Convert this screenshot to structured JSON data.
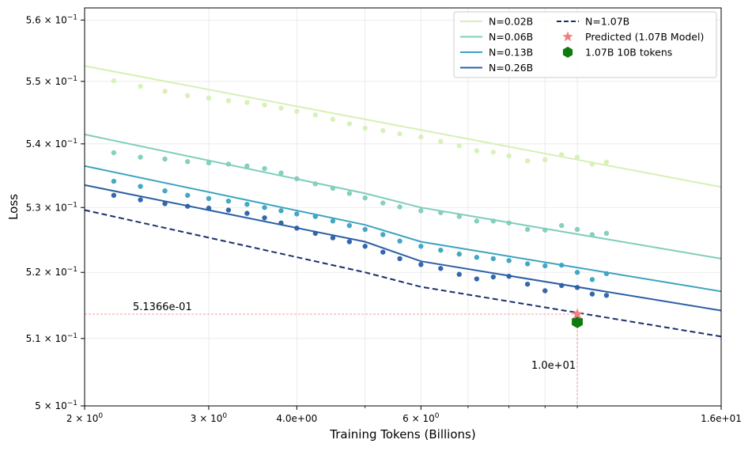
{
  "chart_data": {
    "type": "scatter",
    "xlabel": "Training Tokens (Billions)",
    "ylabel": "Loss",
    "x_scale": "log",
    "y_scale": "log",
    "xlim": [
      2.0,
      16.0
    ],
    "ylim": [
      0.5,
      0.562
    ],
    "grid": true,
    "legend_position": "top-right",
    "x_ticks": [
      {
        "value": 2.0,
        "label": "2 × 10",
        "exp": "0"
      },
      {
        "value": 3.0,
        "label": "3 × 10",
        "exp": "0"
      },
      {
        "value": 4.0,
        "label": "4.0e+00",
        "exp": ""
      },
      {
        "value": 6.0,
        "label": "6 × 10",
        "exp": "0"
      },
      {
        "value": 16.0,
        "label": "1.6e+01",
        "exp": ""
      }
    ],
    "x_minor_grid": [
      5.0,
      7.0,
      8.0,
      9.0,
      10.0
    ],
    "y_ticks": [
      {
        "value": 0.5,
        "label": "5 × 10",
        "exp": "−1"
      },
      {
        "value": 0.51,
        "label": "5.1 × 10",
        "exp": "−1"
      },
      {
        "value": 0.52,
        "label": "5.2 × 10",
        "exp": "−1"
      },
      {
        "value": 0.53,
        "label": "5.3 × 10",
        "exp": "−1"
      },
      {
        "value": 0.54,
        "label": "5.4 × 10",
        "exp": "−1"
      },
      {
        "value": 0.55,
        "label": "5.5 × 10",
        "exp": "−1"
      },
      {
        "value": 0.56,
        "label": "5.6 × 10",
        "exp": "−1"
      }
    ],
    "x_points": [
      2.2,
      2.4,
      2.6,
      2.8,
      3.0,
      3.2,
      3.4,
      3.6,
      3.8,
      4.0,
      4.25,
      4.5,
      4.75,
      5.0,
      5.3,
      5.6,
      6.0,
      6.4,
      6.8,
      7.2,
      7.6,
      8.0,
      8.5,
      9.0,
      9.5,
      10.0,
      10.5,
      11.0
    ],
    "series": [
      {
        "name": "N=0.02B",
        "color": "#d6f0b5",
        "fit": [
          [
            2.0,
            0.5525
          ],
          [
            16.0,
            0.5332
          ]
        ],
        "points": [
          0.5501,
          0.5492,
          0.5484,
          0.5477,
          0.5473,
          0.5469,
          0.5466,
          0.5462,
          0.5457,
          0.5452,
          0.5446,
          0.5439,
          0.5432,
          0.5425,
          0.5421,
          0.5416,
          0.5411,
          0.5404,
          0.5397,
          0.5389,
          0.5387,
          0.5381,
          0.5373,
          0.5375,
          0.5383,
          0.5379,
          0.5368,
          0.5371
        ]
      },
      {
        "name": "N=0.06B",
        "color": "#7fcdbb",
        "fit": [
          [
            2.0,
            0.5415
          ],
          [
            5.0,
            0.5322
          ],
          [
            6.0,
            0.53
          ],
          [
            16.0,
            0.5221
          ]
        ],
        "points": [
          0.5386,
          0.5379,
          0.5376,
          0.5372,
          0.537,
          0.5368,
          0.5365,
          0.5361,
          0.5354,
          0.5345,
          0.5337,
          0.533,
          0.5322,
          0.5315,
          0.5307,
          0.5301,
          0.5295,
          0.5292,
          0.5286,
          0.5279,
          0.5279,
          0.5276,
          0.5266,
          0.5265,
          0.5272,
          0.5266,
          0.5258,
          0.526
        ]
      },
      {
        "name": "N=0.13B",
        "color": "#3ba3c0",
        "fit": [
          [
            2.0,
            0.5365
          ],
          [
            5.0,
            0.5273
          ],
          [
            6.0,
            0.5247
          ],
          [
            16.0,
            0.5171
          ]
        ],
        "points": [
          0.5341,
          0.5333,
          0.5326,
          0.5319,
          0.5314,
          0.531,
          0.5305,
          0.53,
          0.5295,
          0.529,
          0.5286,
          0.5279,
          0.5272,
          0.5266,
          0.5258,
          0.5248,
          0.524,
          0.5234,
          0.5228,
          0.5223,
          0.5221,
          0.5218,
          0.5213,
          0.521,
          0.5211,
          0.52,
          0.5189,
          0.5198
        ]
      },
      {
        "name": "N=0.26B",
        "color": "#2b5fa6",
        "fit": [
          [
            2.0,
            0.5335
          ],
          [
            5.0,
            0.5247
          ],
          [
            6.0,
            0.5217
          ],
          [
            16.0,
            0.5142
          ]
        ],
        "points": [
          0.5319,
          0.5312,
          0.5306,
          0.5302,
          0.5299,
          0.5296,
          0.5291,
          0.5284,
          0.5276,
          0.5268,
          0.526,
          0.5253,
          0.5247,
          0.524,
          0.5231,
          0.5221,
          0.5212,
          0.5206,
          0.5197,
          0.519,
          0.5193,
          0.5194,
          0.5182,
          0.5172,
          0.518,
          0.5177,
          0.5167,
          0.5165
        ]
      },
      {
        "name": "N=1.07B",
        "color": "#1a2f6e",
        "dash": true,
        "fit": [
          [
            2.0,
            0.5296
          ],
          [
            5.0,
            0.52
          ],
          [
            6.0,
            0.5178
          ],
          [
            16.0,
            0.5103
          ]
        ],
        "points": []
      }
    ],
    "predicted": {
      "name": "Predicted (1.07B Model)",
      "x": 10.0,
      "y": 0.51366,
      "color": "#f08080"
    },
    "actual": {
      "name": "1.07B 10B tokens",
      "x": 10.0,
      "y": 0.5125,
      "color": "#0f7a0f"
    },
    "annotations": {
      "y_value_label": "5.1366e-01",
      "x_value_label": "1.0e+01",
      "color": "#f08080"
    },
    "legend_order": [
      "N=0.02B",
      "N=0.06B",
      "N=0.13B",
      "N=0.26B",
      "N=1.07B",
      "Predicted (1.07B Model)",
      "1.07B 10B tokens"
    ]
  }
}
